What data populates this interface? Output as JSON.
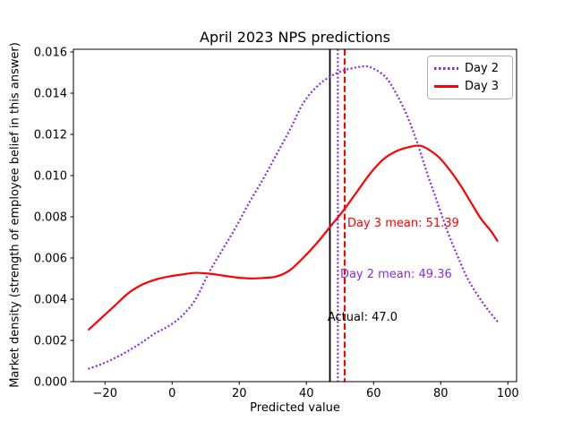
{
  "figure": {
    "title": "April 2023 NPS predictions",
    "xlabel": "Predicted value",
    "ylabel": "Market density (strength of employee belief in this answer)"
  },
  "chart_data": {
    "type": "line",
    "title": "April 2023 NPS predictions",
    "xlabel": "Predicted value",
    "ylabel": "Market density (strength of employee belief in this answer)",
    "xlim": [
      -29.4,
      102.6
    ],
    "ylim": [
      0,
      0.01613
    ],
    "grid": false,
    "legend_position": "upper right",
    "xticks": [
      {
        "value": -20,
        "label": "−20"
      },
      {
        "value": 0,
        "label": "0"
      },
      {
        "value": 20,
        "label": "20"
      },
      {
        "value": 40,
        "label": "40"
      },
      {
        "value": 60,
        "label": "60"
      },
      {
        "value": 80,
        "label": "80"
      },
      {
        "value": 100,
        "label": "100"
      }
    ],
    "yticks": [
      {
        "value": 0.0,
        "label": "0.000"
      },
      {
        "value": 0.002,
        "label": "0.002"
      },
      {
        "value": 0.004,
        "label": "0.004"
      },
      {
        "value": 0.006,
        "label": "0.006"
      },
      {
        "value": 0.008,
        "label": "0.008"
      },
      {
        "value": 0.01,
        "label": "0.010"
      },
      {
        "value": 0.012,
        "label": "0.012"
      },
      {
        "value": 0.014,
        "label": "0.014"
      },
      {
        "value": 0.016,
        "label": "0.016"
      }
    ],
    "series": [
      {
        "name": "Day 2",
        "color": "#8a2be2",
        "style": "dotted",
        "points": [
          [
            -25,
            0.00062
          ],
          [
            -21,
            0.00085
          ],
          [
            -17,
            0.00115
          ],
          [
            -13,
            0.0015
          ],
          [
            -9,
            0.0019
          ],
          [
            -5,
            0.00235
          ],
          [
            -1,
            0.0027
          ],
          [
            3,
            0.0032
          ],
          [
            7,
            0.004
          ],
          [
            11,
            0.0053
          ],
          [
            15,
            0.0064
          ],
          [
            19,
            0.0075
          ],
          [
            23,
            0.0087
          ],
          [
            27,
            0.0098
          ],
          [
            31,
            0.011
          ],
          [
            35,
            0.0122
          ],
          [
            39,
            0.0135
          ],
          [
            43,
            0.0143
          ],
          [
            47,
            0.0148
          ],
          [
            51,
            0.0151
          ],
          [
            55,
            0.01525
          ],
          [
            58,
            0.0153
          ],
          [
            61,
            0.0151
          ],
          [
            64,
            0.0147
          ],
          [
            67,
            0.0139
          ],
          [
            70,
            0.0129
          ],
          [
            73,
            0.0116
          ],
          [
            76,
            0.0101
          ],
          [
            79,
            0.0087
          ],
          [
            82,
            0.0073
          ],
          [
            85,
            0.0061
          ],
          [
            88,
            0.005
          ],
          [
            91,
            0.0042
          ],
          [
            94,
            0.0035
          ],
          [
            97,
            0.0029
          ]
        ]
      },
      {
        "name": "Day 3",
        "color": "#ff0000",
        "style": "solid",
        "points": [
          [
            -25,
            0.0025
          ],
          [
            -21,
            0.0031
          ],
          [
            -17,
            0.0037
          ],
          [
            -13,
            0.0043
          ],
          [
            -9,
            0.0047
          ],
          [
            -5,
            0.00495
          ],
          [
            -1,
            0.0051
          ],
          [
            3,
            0.0052
          ],
          [
            7,
            0.00528
          ],
          [
            11,
            0.00524
          ],
          [
            15,
            0.00515
          ],
          [
            19,
            0.00506
          ],
          [
            23,
            0.00501
          ],
          [
            27,
            0.00503
          ],
          [
            31,
            0.0051
          ],
          [
            35,
            0.0054
          ],
          [
            39,
            0.006
          ],
          [
            43,
            0.0067
          ],
          [
            47,
            0.0075
          ],
          [
            51,
            0.0083
          ],
          [
            55,
            0.0092
          ],
          [
            59,
            0.0101
          ],
          [
            63,
            0.0108
          ],
          [
            67,
            0.0112
          ],
          [
            71,
            0.0114
          ],
          [
            74,
            0.01145
          ],
          [
            77,
            0.0112
          ],
          [
            80,
            0.0108
          ],
          [
            83,
            0.0102
          ],
          [
            86,
            0.0095
          ],
          [
            89,
            0.0087
          ],
          [
            92,
            0.0079
          ],
          [
            95,
            0.0073
          ],
          [
            97,
            0.0068
          ]
        ]
      }
    ],
    "vlines": [
      {
        "name": "actual",
        "x": 47,
        "color": "#000000",
        "style": "solid"
      },
      {
        "name": "day2-mean",
        "x": 49.36,
        "color": "#8a2be2",
        "style": "dotted"
      },
      {
        "name": "day3-mean",
        "x": 51.39,
        "color": "#ff0000",
        "style": "dashed"
      }
    ],
    "annotations": [
      {
        "name": "day3-mean-label",
        "text": "Day 3 mean: 51.39",
        "x": 52.2,
        "y": 0.00752,
        "color": "#ff0000"
      },
      {
        "name": "day2-mean-label",
        "text": "Day 2 mean: 49.36",
        "x": 50.05,
        "y": 0.00504,
        "color": "#8a2be2"
      },
      {
        "name": "actual-label",
        "text": "Actual: 47.0",
        "x": 46.3,
        "y": 0.00296,
        "color": "#000000"
      }
    ],
    "legend_entries": [
      "Day 2",
      "Day 3"
    ]
  }
}
